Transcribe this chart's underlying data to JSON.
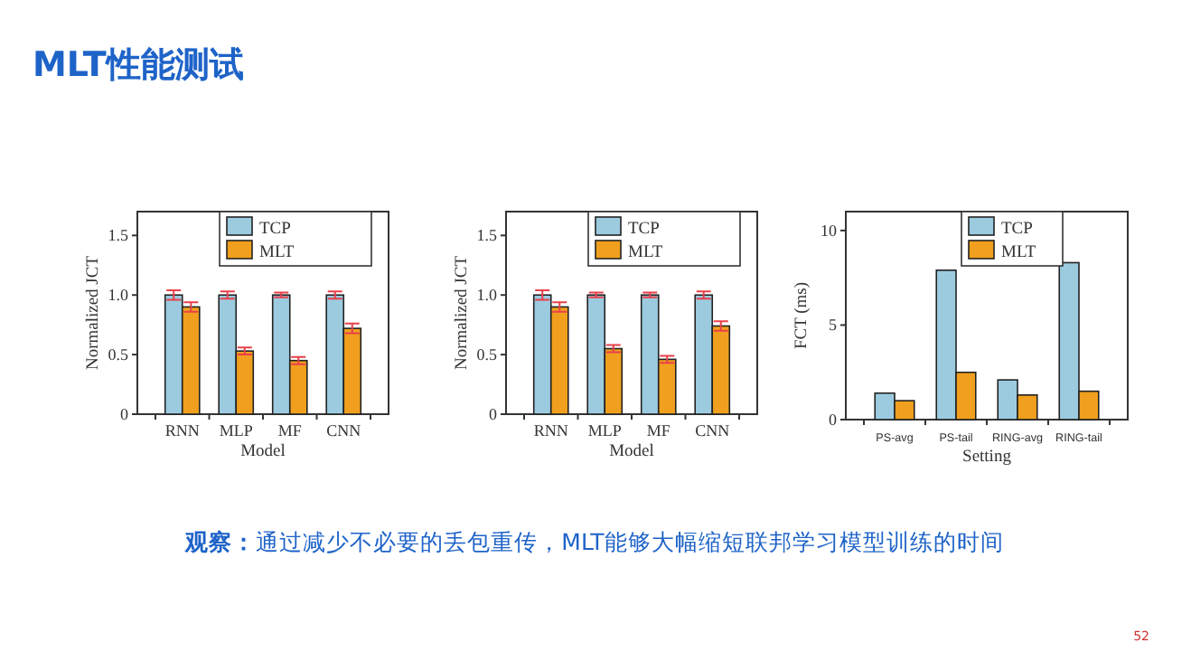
{
  "chart_data": [
    {
      "type": "bar",
      "title": "MLT性能测试",
      "xlabel": "Model",
      "ylabel": "Normalized JCT",
      "categories": [
        "RNN",
        "MLP",
        "MF",
        "CNN"
      ],
      "ylim": [
        0,
        1.7
      ],
      "yticks": [
        0,
        {
          "value": 0.5,
          "label": "0.5"
        },
        {
          "value": 1,
          "label": "1.0"
        },
        {
          "value": 1.5,
          "label": "1.5"
        }
      ],
      "legend": "top",
      "series": [
        {
          "name": "TCP",
          "color": "#9ccbe0",
          "values": [
            1,
            1,
            1,
            1
          ],
          "errors": [
            0.04,
            0.03,
            0.02,
            0.03
          ]
        },
        {
          "name": "MLT",
          "color": "#f0a01e",
          "values": [
            0.9,
            0.53,
            0.45,
            0.72
          ],
          "errors": [
            0.04,
            0.03,
            0.03,
            0.04
          ]
        }
      ],
      "annotations": [
        "**观察：**通过减少不必要的丢包重传，MLT能够大幅缩短联邦学习模型训练的时间",
        "52"
      ]
    },
    {
      "type": "bar",
      "xlabel": "Model",
      "ylabel": "Normalized JCT",
      "categories": [
        "RNN",
        "MLP",
        "MF",
        "CNN"
      ],
      "ylim": [
        0,
        1.7
      ],
      "yticks": [
        0,
        {
          "value": 0.5,
          "label": "0.5"
        },
        {
          "value": 1,
          "label": "1.0"
        },
        {
          "value": 1.5,
          "label": "1.5"
        }
      ],
      "legend": "top",
      "series": [
        {
          "name": "TCP",
          "color": "#9ccbe0",
          "values": [
            1,
            1,
            1,
            1
          ],
          "errors": [
            0.04,
            0.02,
            0.02,
            0.03
          ]
        },
        {
          "name": "MLT",
          "color": "#f0a01e",
          "values": [
            0.9,
            0.55,
            0.46,
            0.74
          ],
          "errors": [
            0.04,
            0.03,
            0.03,
            0.04
          ]
        }
      ]
    },
    {
      "type": "bar",
      "xlabel": "Setting",
      "ylabel": "FCT (ms)",
      "categories": [
        "PS-avg",
        "PS-tail",
        "RING-avg",
        "RING-tail"
      ],
      "ylim": [
        0,
        11
      ],
      "yticks": [
        0,
        5,
        10
      ],
      "legend": "top",
      "series": [
        {
          "name": "TCP",
          "color": "#9ccbe0",
          "values": [
            1.4,
            7.9,
            2.1,
            8.3
          ]
        },
        {
          "name": "MLT",
          "color": "#f0a01e",
          "values": [
            1.0,
            2.5,
            1.3,
            1.5
          ]
        }
      ]
    }
  ]
}
